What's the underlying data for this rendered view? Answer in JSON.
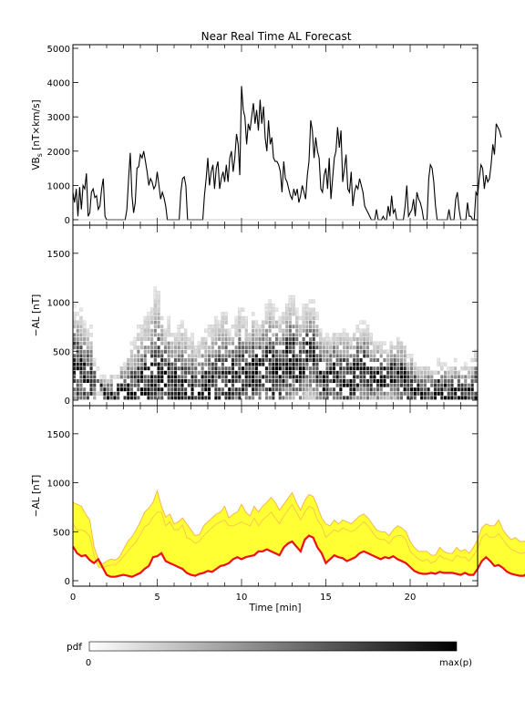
{
  "title": "Near Real Time AL Forecast",
  "colors": {
    "line": "#000000",
    "heat": "#000000",
    "band_outer": "#f5b554",
    "band_fill": "#ffff33",
    "median": "#ee1111"
  },
  "chart_data": [
    {
      "type": "line",
      "panel": "top",
      "ylabel_main": "VB",
      "ylabel_sub": "s",
      "ylabel_rest": " [nT×km/s]",
      "ylim": [
        0,
        5000
      ],
      "yticks": [
        0,
        1000,
        2000,
        3000,
        4000,
        5000
      ],
      "xlim": [
        0,
        24
      ],
      "x_start": 0,
      "x_step": 0.1,
      "values": [
        800,
        500,
        900,
        100,
        950,
        300,
        1000,
        900,
        1350,
        100,
        200,
        800,
        900,
        650,
        700,
        300,
        400,
        900,
        1200,
        100,
        0,
        0,
        0,
        0,
        0,
        0,
        0,
        0,
        0,
        0,
        0,
        0,
        300,
        1200,
        1950,
        700,
        200,
        500,
        1500,
        1550,
        1900,
        1800,
        2000,
        1700,
        1400,
        1000,
        1200,
        1100,
        900,
        1000,
        1400,
        1000,
        600,
        800,
        650,
        400,
        0,
        0,
        0,
        0,
        0,
        0,
        0,
        0,
        800,
        1200,
        1250,
        1000,
        0,
        0,
        0,
        0,
        0,
        0,
        0,
        0,
        0,
        0,
        700,
        1200,
        1800,
        1000,
        1400,
        1600,
        900,
        1500,
        1700,
        900,
        1200,
        1400,
        1100,
        1600,
        1100,
        1800,
        2000,
        1400,
        1800,
        2500,
        2200,
        1300,
        3900,
        3200,
        3000,
        2200,
        2800,
        2600,
        3000,
        3400,
        2800,
        3200,
        2600,
        3500,
        2800,
        3300,
        2400,
        2000,
        2900,
        2200,
        2400,
        1800,
        1700,
        1700,
        1600,
        1400,
        800,
        1700,
        1200,
        1100,
        900,
        700,
        600,
        900,
        700,
        900,
        500,
        700,
        1000,
        800,
        600,
        1300,
        1700,
        2900,
        2600,
        1800,
        2400,
        2000,
        1800,
        900,
        800,
        1300,
        1500,
        900,
        1800,
        600,
        1200,
        1800,
        2000,
        2700,
        2100,
        2600,
        1100,
        1500,
        1900,
        900,
        800,
        1400,
        400,
        800,
        1000,
        900,
        1200,
        1000,
        800,
        400,
        300,
        200,
        100,
        0,
        0,
        0,
        300,
        0,
        0,
        0,
        100,
        0,
        0,
        400,
        100,
        700,
        200,
        300,
        0,
        0,
        0,
        0,
        0,
        400,
        1000,
        100,
        200,
        300,
        600,
        100,
        800,
        600,
        500,
        300,
        0,
        0,
        0,
        1200,
        1600,
        1500,
        1100,
        400,
        0,
        0,
        0,
        0,
        0,
        0,
        0,
        300,
        0,
        0,
        0,
        600,
        800,
        300,
        0,
        0,
        0,
        0,
        500,
        100,
        100,
        0,
        0,
        800,
        700,
        1200,
        1600,
        1500,
        900,
        1300,
        1100,
        1200,
        1600,
        2200,
        1900,
        2800,
        2700,
        2600,
        2400
      ]
    },
    {
      "type": "heatmap",
      "panel": "middle",
      "ylabel": "−AL [nT]",
      "ylim": [
        0,
        1750
      ],
      "yticks": [
        0,
        500,
        1000,
        1500
      ],
      "xlim": [
        0,
        24
      ],
      "note_scale": "pdf"
    },
    {
      "type": "area",
      "panel": "bottom",
      "ylabel": "−AL [nT]",
      "xlabel": "Time [min]",
      "ylim": [
        0,
        1750
      ],
      "yticks": [
        0,
        500,
        1000,
        1500
      ],
      "xlim": [
        0,
        24
      ],
      "xticks": [
        0,
        5,
        10,
        15,
        20
      ],
      "x_start": 0,
      "x_step": 0.25,
      "median": [
        350,
        280,
        250,
        260,
        210,
        180,
        220,
        140,
        60,
        40,
        40,
        50,
        60,
        50,
        40,
        60,
        80,
        120,
        150,
        240,
        250,
        280,
        200,
        180,
        160,
        140,
        120,
        80,
        60,
        50,
        70,
        80,
        100,
        90,
        120,
        150,
        160,
        180,
        220,
        240,
        220,
        240,
        250,
        260,
        300,
        300,
        320,
        300,
        280,
        260,
        340,
        380,
        400,
        350,
        300,
        420,
        460,
        440,
        340,
        280,
        180,
        220,
        260,
        240,
        230,
        200,
        220,
        240,
        280,
        300,
        280,
        260,
        240,
        220,
        240,
        230,
        250,
        220,
        200,
        180,
        140,
        100,
        80,
        70,
        70,
        80,
        70,
        90,
        80,
        80,
        80,
        70,
        60,
        80,
        60,
        60,
        120,
        200,
        240,
        200,
        150,
        160,
        130,
        90,
        70,
        60,
        50,
        50,
        90,
        140,
        210,
        240,
        300,
        310
      ],
      "upper": [
        580,
        520,
        520,
        500,
        450,
        260,
        140,
        130,
        150,
        160,
        160,
        200,
        250,
        300,
        350,
        400,
        470,
        550,
        580,
        650,
        700,
        700,
        560,
        600,
        520,
        520,
        570,
        440,
        420,
        380,
        400,
        460,
        500,
        540,
        580,
        600,
        620,
        560,
        560,
        580,
        600,
        580,
        560,
        640,
        560,
        620,
        660,
        700,
        640,
        580,
        660,
        720,
        780,
        700,
        620,
        700,
        760,
        740,
        620,
        560,
        440,
        480,
        520,
        500,
        540,
        520,
        500,
        520,
        560,
        600,
        560,
        500,
        440,
        420,
        420,
        380,
        440,
        460,
        460,
        420,
        300,
        260,
        220,
        200,
        220,
        180,
        200,
        260,
        230,
        220,
        200,
        260,
        240,
        240,
        200,
        260,
        320,
        440,
        480,
        440,
        440,
        480,
        420,
        360,
        320,
        300,
        280,
        280,
        320,
        360,
        420,
        460,
        480,
        560
      ],
      "outer": [
        800,
        780,
        760,
        680,
        620,
        350,
        220,
        170,
        200,
        220,
        210,
        240,
        320,
        400,
        450,
        520,
        600,
        700,
        740,
        800,
        920,
        760,
        650,
        680,
        580,
        600,
        640,
        580,
        520,
        460,
        470,
        560,
        600,
        640,
        680,
        700,
        760,
        640,
        680,
        700,
        780,
        700,
        660,
        760,
        700,
        760,
        800,
        850,
        800,
        720,
        780,
        840,
        900,
        800,
        720,
        820,
        880,
        860,
        760,
        640,
        580,
        560,
        620,
        580,
        620,
        600,
        580,
        620,
        660,
        680,
        640,
        580,
        520,
        500,
        500,
        460,
        520,
        560,
        540,
        500,
        400,
        340,
        300,
        300,
        300,
        260,
        260,
        340,
        300,
        280,
        280,
        340,
        300,
        320,
        280,
        340,
        420,
        540,
        580,
        560,
        560,
        620,
        520,
        460,
        420,
        440,
        400,
        400,
        420,
        460,
        520,
        580,
        600,
        660
      ]
    },
    {
      "type": "colorbar",
      "label": "pdf",
      "min_label": "0",
      "max_label": "max(p)"
    }
  ]
}
